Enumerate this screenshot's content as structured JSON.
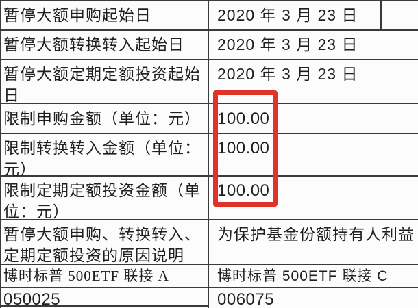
{
  "page": {
    "background": "#fcfcfc",
    "border_color": "#3a3a3a",
    "text_color": "#1f1f1f"
  },
  "highlight": {
    "shape": "red-rectangle-annotation",
    "color": "#e03226",
    "marks": "limit amounts column values"
  },
  "table": {
    "rows": [
      {
        "label": "暂停大额申购起始日",
        "value": "2020 年 3 月 23 日"
      },
      {
        "label": "暂停大额转换转入起始日",
        "value": "2020 年 3 月 23 日"
      },
      {
        "label": "暂停大额定期定额投资起始日",
        "value": "2020 年 3 月 23 日"
      },
      {
        "label": "限制申购金额（单位：元）",
        "value": "100.00"
      },
      {
        "label": "限制转换转入金额（单位：元）",
        "value": "100.00"
      },
      {
        "label": "限制定期定额投资金额（单位：元）",
        "value": "100.00"
      },
      {
        "label": "暂停大额申购、转换转入、定期定额投资的原因说明",
        "value": "为保护基金份额持有人利益"
      },
      {
        "label": "博时标普 500ETF 联接 A",
        "value": "博时标普 500ETF 联接 C"
      },
      {
        "label": "050025",
        "value": "006075"
      }
    ]
  }
}
